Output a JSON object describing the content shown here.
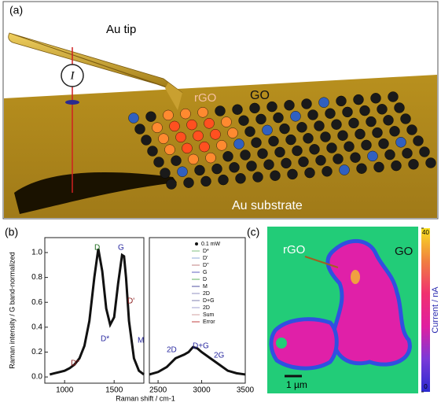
{
  "figure": {
    "panel_a": {
      "label": "(a)",
      "tip": "Au tip",
      "current_symbol": "I",
      "rgo": "rGO",
      "go": "GO",
      "substrate": "Au substrate"
    },
    "panel_b": {
      "label": "(b)"
    },
    "panel_c": {
      "label": "(c)",
      "rgo": "rGO",
      "go": "GO",
      "scale_bar": "1 µm"
    }
  },
  "chart_data": [
    {
      "type": "spectrum",
      "x_label": "Raman shift / cm-1",
      "y_label": "Raman intensity / G band-normalized",
      "x": [
        850,
        900,
        950,
        1000,
        1050,
        1100,
        1150,
        1200,
        1250,
        1300,
        1340,
        1380,
        1420,
        1460,
        1500,
        1540,
        1580,
        1600,
        1620,
        1650,
        1700,
        1750,
        1800,
        null,
        2400,
        2500,
        2600,
        2700,
        2800,
        2850,
        2900,
        2950,
        3000,
        3100,
        3200,
        3300,
        3400,
        3500
      ],
      "series": [
        {
          "name": "0.1 mW",
          "color": "#111111",
          "values": [
            0.02,
            0.03,
            0.04,
            0.05,
            0.07,
            0.1,
            0.15,
            0.25,
            0.45,
            0.8,
            1.03,
            0.85,
            0.55,
            0.42,
            0.48,
            0.75,
            0.98,
            0.97,
            0.8,
            0.45,
            0.15,
            0.05,
            0.02,
            null,
            0.02,
            0.04,
            0.08,
            0.15,
            0.18,
            0.2,
            0.24,
            0.23,
            0.2,
            0.15,
            0.1,
            0.05,
            0.03,
            0.02
          ]
        }
      ],
      "legend": [
        {
          "name": "D*",
          "color": "#7fbf7f"
        },
        {
          "name": "D'",
          "color": "#8fa8d8"
        },
        {
          "name": "D''",
          "color": "#c08080"
        },
        {
          "name": "G",
          "color": "#6060c0"
        },
        {
          "name": "D",
          "color": "#60b060"
        },
        {
          "name": "M",
          "color": "#5050a0"
        },
        {
          "name": "2D",
          "color": "#9090c0"
        },
        {
          "name": "D+G",
          "color": "#8080b0"
        },
        {
          "name": "2D",
          "color": "#a0a0d0"
        },
        {
          "name": "Sum",
          "color": "#d0a0a0"
        },
        {
          "name": "Error",
          "color": "#c04040"
        }
      ],
      "annotations": [
        {
          "text": "D",
          "color": "#1a6a1a"
        },
        {
          "text": "G",
          "color": "#2a2aa0"
        },
        {
          "text": "D'",
          "color": "#8a1a1a"
        },
        {
          "text": "D*",
          "color": "#2a2aa0"
        },
        {
          "text": "D''",
          "color": "#8a1a1a"
        },
        {
          "text": "M",
          "color": "#2a2aa0"
        },
        {
          "text": "2D",
          "color": "#2a2aa0"
        },
        {
          "text": "D+G",
          "color": "#2a2aa0"
        },
        {
          "text": "2G",
          "color": "#2a2aa0"
        }
      ],
      "xlim_segments": [
        [
          800,
          1800
        ],
        [
          2400,
          3500
        ]
      ],
      "xticks": [
        1000,
        1500,
        2500,
        3000,
        3500
      ],
      "ylim": [
        -0.05,
        1.12
      ],
      "yticks": [
        {
          "value": 0,
          "label": "0.0"
        },
        {
          "value": 0.2,
          "label": "0.2"
        },
        {
          "value": 0.4,
          "label": "0.4"
        },
        {
          "value": 0.6,
          "label": "0.6"
        },
        {
          "value": 0.8,
          "label": "0.8"
        },
        {
          "value": 1,
          "label": "1.0"
        }
      ]
    },
    {
      "type": "colorbar",
      "label": "Current / nA",
      "zlim": [
        0,
        40
      ],
      "zticks": [
        0,
        40
      ],
      "colormap": [
        "#2a2ad0",
        "#7a3ad8",
        "#e020a0",
        "#f03070",
        "#f08040",
        "#f8e020"
      ]
    }
  ]
}
